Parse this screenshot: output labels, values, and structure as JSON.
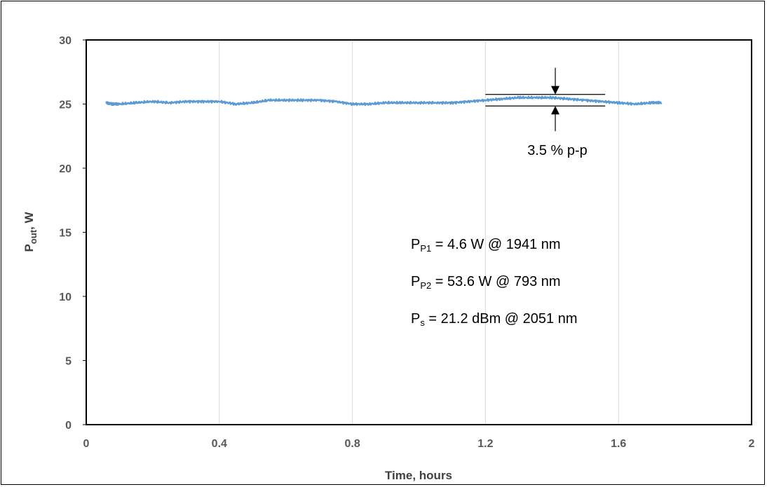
{
  "chart_data": {
    "type": "line",
    "xlabel": "Time, hours",
    "ylabel": {
      "main": "P",
      "sub": "out",
      "rest": ", W"
    },
    "xlim": [
      0,
      2
    ],
    "ylim": [
      0,
      30
    ],
    "x_ticks": [
      "0",
      "0.4",
      "0.8",
      "1.2",
      "1.6",
      "2"
    ],
    "x_tick_values": [
      0,
      0.4,
      0.8,
      1.2,
      1.6,
      2
    ],
    "y_ticks": [
      "0",
      "5",
      "10",
      "15",
      "20",
      "25",
      "30"
    ],
    "y_tick_values": [
      0,
      5,
      10,
      15,
      20,
      25,
      30
    ],
    "grid": "vertical",
    "series": [
      {
        "color": "#5b9bd5",
        "x": [
          0.06,
          0.08,
          0.1,
          0.15,
          0.2,
          0.25,
          0.3,
          0.35,
          0.4,
          0.45,
          0.5,
          0.55,
          0.6,
          0.65,
          0.7,
          0.75,
          0.8,
          0.85,
          0.9,
          0.95,
          1.0,
          1.05,
          1.1,
          1.15,
          1.2,
          1.25,
          1.3,
          1.35,
          1.4,
          1.45,
          1.5,
          1.55,
          1.6,
          1.65,
          1.7,
          1.73
        ],
        "y": [
          25.1,
          25.0,
          25.0,
          25.1,
          25.2,
          25.1,
          25.2,
          25.2,
          25.2,
          25.0,
          25.1,
          25.3,
          25.3,
          25.3,
          25.3,
          25.2,
          25.0,
          25.0,
          25.1,
          25.1,
          25.1,
          25.1,
          25.1,
          25.2,
          25.3,
          25.4,
          25.5,
          25.5,
          25.5,
          25.4,
          25.3,
          25.2,
          25.1,
          25.0,
          25.1,
          25.1
        ]
      }
    ],
    "bracket": {
      "x_from": 1.2,
      "x_to": 1.56,
      "y_high": 25.75,
      "y_low": 24.85,
      "arrow_x": 1.41
    },
    "annotations": {
      "pp": "3.5 % p-p",
      "line1": {
        "main": "P",
        "sub": "P1",
        "rest": " = 4.6 W @ 1941 nm"
      },
      "line2": {
        "main": "P",
        "sub": "P2",
        "rest": " = 53.6 W @ 793 nm"
      },
      "line3": {
        "main": "P",
        "sub": "s",
        "rest": " = 21.2 dBm @ 2051 nm"
      }
    }
  }
}
